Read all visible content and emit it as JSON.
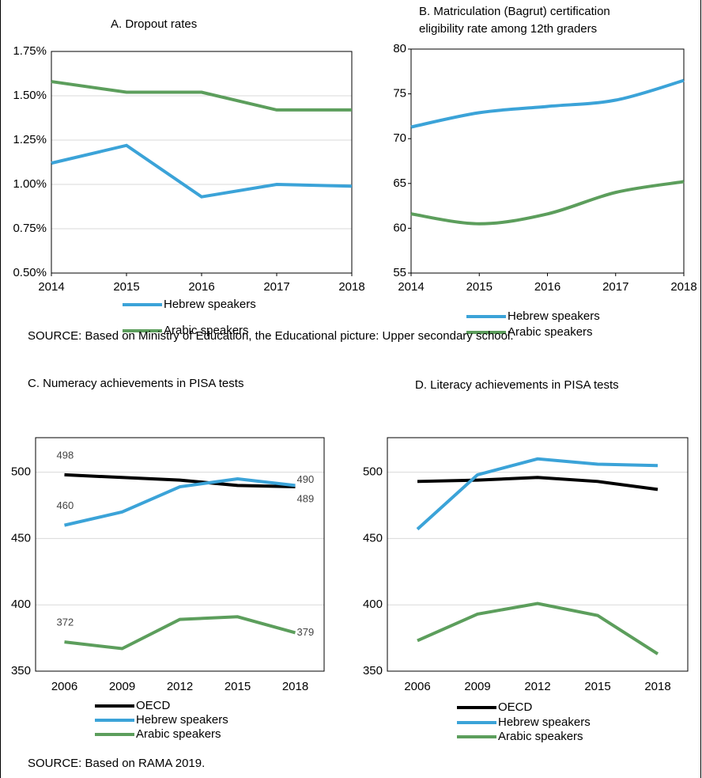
{
  "chart_data": [
    {
      "type": "line",
      "title": "A. Dropout rates",
      "x": [
        2014,
        2015,
        2016,
        2017,
        2018
      ],
      "xlim": [
        2014,
        2018
      ],
      "xticks": [
        2014,
        2015,
        2016,
        2017,
        2018
      ],
      "ylim": [
        0.5,
        1.75
      ],
      "yticks": [
        {
          "value": 0.5,
          "label": "0.50%"
        },
        {
          "value": 0.75,
          "label": "0.75%"
        },
        {
          "value": 1.0,
          "label": "1.00%"
        },
        {
          "value": 1.25,
          "label": "1.25%"
        },
        {
          "value": 1.5,
          "label": "1.50%"
        },
        {
          "value": 1.75,
          "label": "1.75%"
        }
      ],
      "grid": true,
      "series": [
        {
          "name": "Hebrew speakers",
          "color": "#3ba3d8",
          "values": [
            1.12,
            1.22,
            0.93,
            1.0,
            0.99
          ]
        },
        {
          "name": "Arabic speakers",
          "color": "#5c9e5c",
          "values": [
            1.58,
            1.52,
            1.52,
            1.42,
            1.42
          ]
        }
      ]
    },
    {
      "type": "line",
      "title": "B. Matriculation (Bagrut) certification eligibility rate among 12th graders",
      "x": [
        2014,
        2015,
        2016,
        2017,
        2018
      ],
      "xlim": [
        2014,
        2018
      ],
      "xticks": [
        2014,
        2015,
        2016,
        2017,
        2018
      ],
      "ylim": [
        55,
        80
      ],
      "yticks": [
        55,
        60,
        65,
        70,
        75,
        80
      ],
      "grid": false,
      "smooth": true,
      "series": [
        {
          "name": "Hebrew speakers",
          "color": "#3ba3d8",
          "values": [
            71.3,
            72.9,
            73.6,
            74.3,
            76.5
          ]
        },
        {
          "name": "Arabic speakers",
          "color": "#5c9e5c",
          "values": [
            61.6,
            60.5,
            61.6,
            64.0,
            65.2
          ]
        }
      ]
    },
    {
      "type": "line",
      "title": "C. Numeracy achievements in PISA tests",
      "categories": [
        "2006",
        "2009",
        "2012",
        "2015",
        "2018"
      ],
      "ylim": [
        350,
        526
      ],
      "yticks": [
        350,
        400,
        450,
        500
      ],
      "grid": true,
      "data_labels": "ends",
      "series": [
        {
          "name": "OECD",
          "color": "#000000",
          "values": [
            498,
            496,
            494,
            490,
            489
          ]
        },
        {
          "name": "Hebrew speakers",
          "color": "#3ba3d8",
          "values": [
            460,
            470,
            489,
            495,
            490
          ]
        },
        {
          "name": "Arabic speakers",
          "color": "#5c9e5c",
          "values": [
            372,
            367,
            389,
            391,
            379
          ]
        }
      ]
    },
    {
      "type": "line",
      "title": "D. Literacy achievements in PISA tests",
      "categories": [
        "2006",
        "2009",
        "2012",
        "2015",
        "2018"
      ],
      "ylim": [
        350,
        526
      ],
      "yticks": [
        350,
        400,
        450,
        500
      ],
      "grid": true,
      "series": [
        {
          "name": "OECD",
          "color": "#000000",
          "values": [
            493,
            494,
            496,
            493,
            487
          ]
        },
        {
          "name": "Hebrew speakers",
          "color": "#3ba3d8",
          "values": [
            457,
            498,
            510,
            506,
            505
          ]
        },
        {
          "name": "Arabic speakers",
          "color": "#5c9e5c",
          "values": [
            373,
            393,
            401,
            392,
            363
          ]
        }
      ]
    }
  ],
  "sources": [
    "SOURCE: Based on Ministry of Education, the Educational picture: Upper secondary school.",
    "SOURCE: Based on RAMA 2019."
  ]
}
